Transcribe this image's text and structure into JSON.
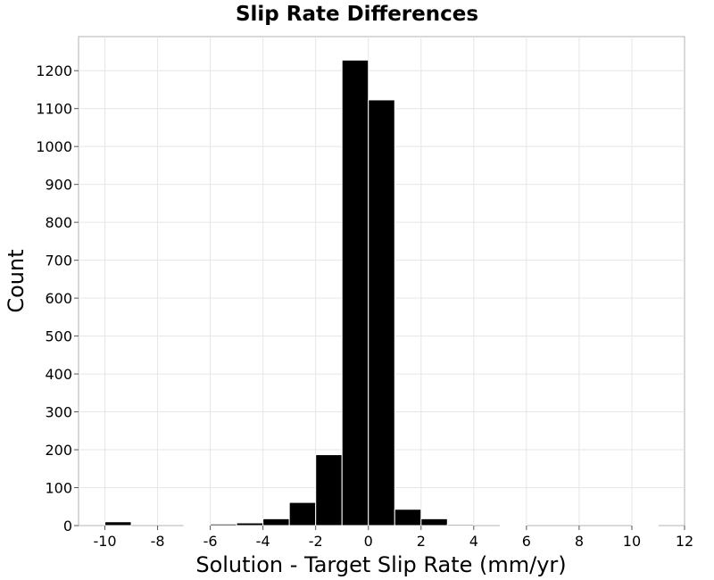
{
  "chart_data": {
    "type": "bar",
    "title": "Slip Rate Differences",
    "xlabel": "Solution - Target Slip Rate (mm/yr)",
    "ylabel": "Count",
    "xlim": [
      -11,
      12
    ],
    "ylim": [
      0,
      1290
    ],
    "xticks": [
      -10,
      -8,
      -6,
      -4,
      -2,
      0,
      2,
      4,
      6,
      8,
      10,
      12
    ],
    "yticks": [
      0,
      100,
      200,
      300,
      400,
      500,
      600,
      700,
      800,
      900,
      1000,
      1100,
      1200
    ],
    "grid": true,
    "bin_width": 1,
    "bins": [
      {
        "x0": -10,
        "x1": -9,
        "count": 10
      },
      {
        "x0": -9,
        "x1": -8,
        "count": 0
      },
      {
        "x0": -8,
        "x1": -7,
        "count": 0
      },
      {
        "x0": -7,
        "x1": -6,
        "count": 2
      },
      {
        "x0": -6,
        "x1": -5,
        "count": 4
      },
      {
        "x0": -5,
        "x1": -4,
        "count": 7
      },
      {
        "x0": -4,
        "x1": -3,
        "count": 18
      },
      {
        "x0": -3,
        "x1": -2,
        "count": 61
      },
      {
        "x0": -2,
        "x1": -1,
        "count": 187
      },
      {
        "x0": -1,
        "x1": 0,
        "count": 1228
      },
      {
        "x0": 0,
        "x1": 1,
        "count": 1123
      },
      {
        "x0": 1,
        "x1": 2,
        "count": 43
      },
      {
        "x0": 2,
        "x1": 3,
        "count": 18
      },
      {
        "x0": 3,
        "x1": 4,
        "count": 3
      },
      {
        "x0": 4,
        "x1": 5,
        "count": 0
      },
      {
        "x0": 5,
        "x1": 6,
        "count": 1
      },
      {
        "x0": 6,
        "x1": 7,
        "count": 0
      },
      {
        "x0": 7,
        "x1": 8,
        "count": 0
      },
      {
        "x0": 8,
        "x1": 9,
        "count": 0
      },
      {
        "x0": 9,
        "x1": 10,
        "count": 0
      },
      {
        "x0": 10,
        "x1": 11,
        "count": 1
      }
    ],
    "bar_color": "#000000",
    "background": "#ffffff",
    "grid_color": "#e6e6e6"
  }
}
